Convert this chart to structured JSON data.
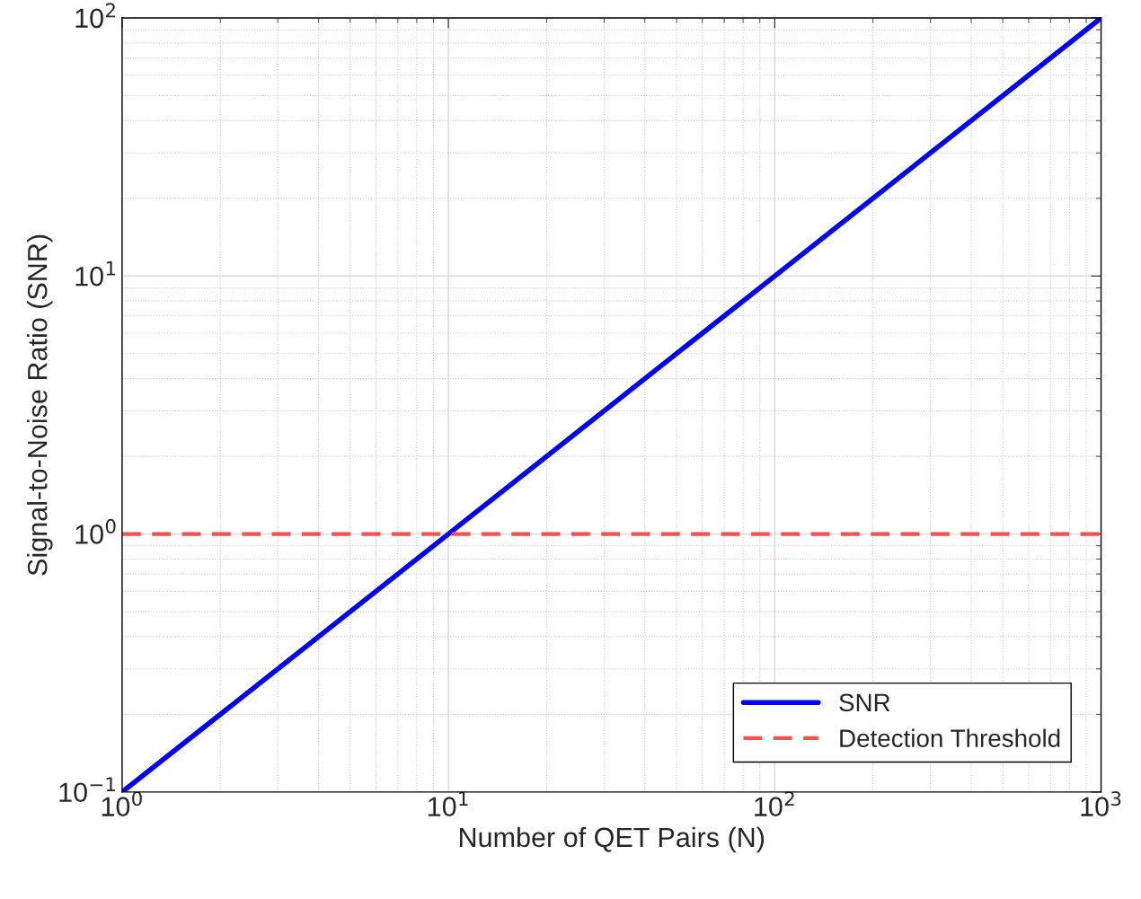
{
  "chart_data": {
    "type": "line",
    "xlabel": "Number of QET Pairs (N)",
    "ylabel": "Signal-to-Noise Ratio (SNR)",
    "series": [
      {
        "name": "SNR",
        "color": "#0000ff",
        "x": [
          1,
          10,
          100,
          1000
        ],
        "values": [
          0.1,
          1,
          10,
          100
        ]
      }
    ],
    "ref_lines": [
      {
        "axis": "y",
        "value": 1,
        "label": "Detection Threshold",
        "color": "#ff4d4d",
        "line_style": "dashed"
      }
    ],
    "log": "xy",
    "xlim": [
      1,
      1000
    ],
    "ylim": [
      0.1,
      100
    ],
    "xticks": [
      {
        "value": 1,
        "label": "10$^{0}$"
      },
      {
        "value": 10,
        "label": "10$^{1}$"
      },
      {
        "value": 100,
        "label": "10$^{2}$"
      },
      {
        "value": 1000,
        "label": "10$^{3}$"
      }
    ],
    "yticks": [
      {
        "value": 0.1,
        "label": "10$^{−1}$"
      },
      {
        "value": 1,
        "label": "10$^{0}$"
      },
      {
        "value": 10,
        "label": "10$^{1}$"
      },
      {
        "value": 100,
        "label": "10$^{2}$"
      }
    ],
    "grid": true,
    "legend": "bottom right",
    "line_style": "solid",
    "marker": "none"
  }
}
